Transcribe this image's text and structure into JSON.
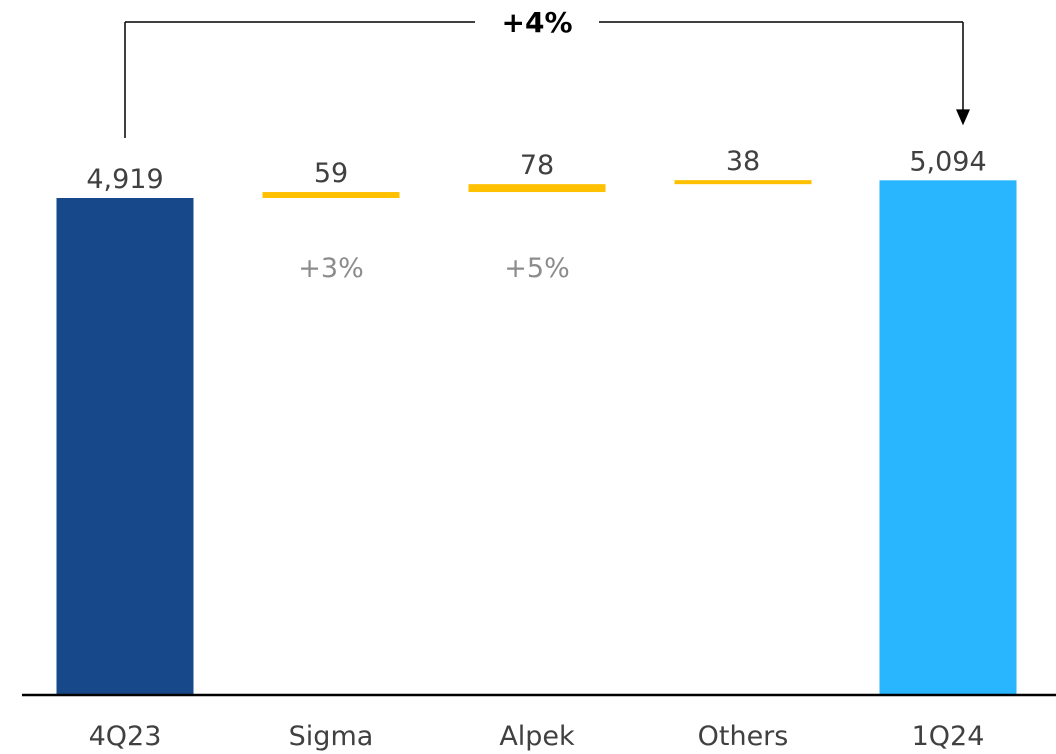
{
  "chart_data": {
    "type": "bar",
    "subtype": "waterfall",
    "categories": [
      "4Q23",
      "Sigma",
      "Alpek",
      "Others",
      "1Q24"
    ],
    "series": [
      {
        "values": [
          4919,
          59,
          78,
          38,
          5094
        ],
        "kinds": [
          "total",
          "increase",
          "increase",
          "increase",
          "total"
        ],
        "labels": [
          "4,919",
          "59",
          "78",
          "38",
          "5,094"
        ]
      }
    ],
    "growth_labels": [
      "",
      "+3%",
      "+5%",
      "",
      ""
    ],
    "bracket": {
      "label": "+4%",
      "from": "4Q23",
      "to": "1Q24"
    },
    "title": "",
    "xlabel": "",
    "ylabel": "",
    "ylim": [
      0,
      5094
    ],
    "grid": false,
    "legend": "none",
    "colors": {
      "start_total": "#17488a",
      "end_total": "#29b6ff",
      "increase": "#ffc000",
      "axis": "#000000",
      "value_text": "#404040",
      "growth_text": "#8c8c8c",
      "bracket": "#000000"
    }
  }
}
